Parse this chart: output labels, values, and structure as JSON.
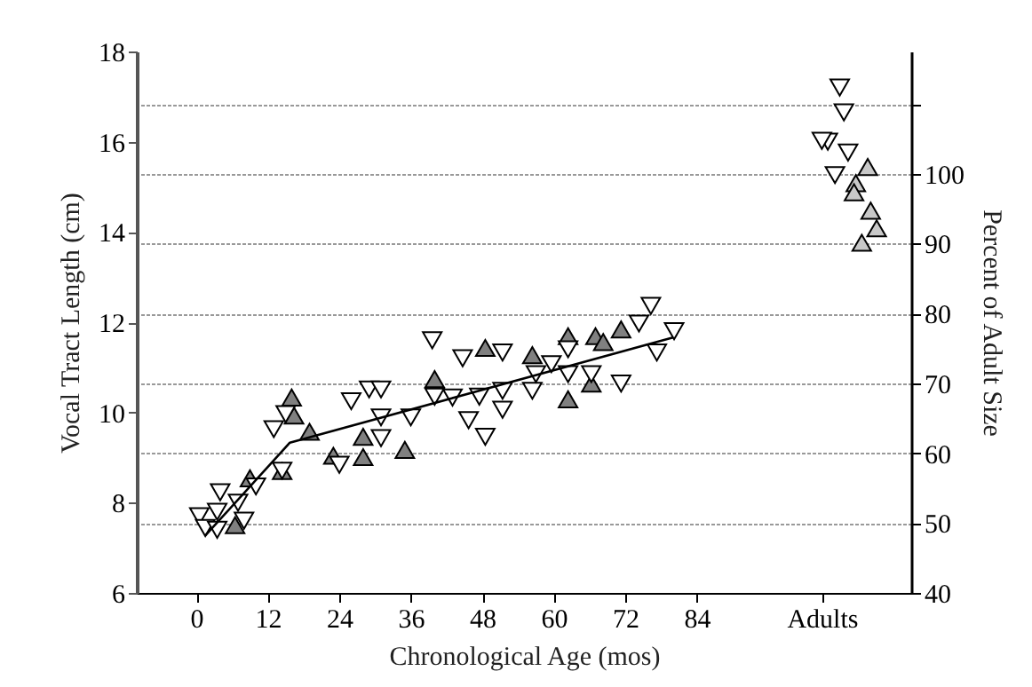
{
  "chart_data": {
    "type": "scatter",
    "xlabel": "Chronological Age (mos)",
    "ylabel": "Vocal Tract Length (cm)",
    "y2label": "Percent of Adult Size",
    "xlim": [
      -10,
      120
    ],
    "xticks": [
      0,
      12,
      24,
      36,
      48,
      60,
      72,
      84,
      {
        "value": 105,
        "label": "Adults"
      }
    ],
    "ylim": [
      6,
      18
    ],
    "yticks": [
      6,
      8,
      10,
      12,
      14,
      16,
      18
    ],
    "y2lim": [
      40,
      117.5
    ],
    "y2ticks": [
      40,
      50,
      60,
      70,
      80,
      90,
      100,
      {
        "value": 110,
        "label": null
      }
    ],
    "grid": "y",
    "series": [
      {
        "color": "#808080",
        "marker": "triangle",
        "x": [
          6.5,
          9,
          14.4,
          16,
          16.4,
          19,
          23,
          28,
          28,
          35,
          40,
          48.5,
          56.4,
          62.4,
          62.4,
          66.3,
          67,
          68.3,
          71.3
        ],
        "values": [
          7.5,
          8.54,
          8.7,
          10.33,
          9.93,
          9.57,
          9.04,
          9.46,
          9.01,
          9.17,
          10.74,
          11.43,
          11.27,
          11.69,
          10.29,
          10.64,
          11.69,
          11.56,
          11.84
        ]
      },
      {
        "color": "#ffffff",
        "marker": "triangle-down",
        "x": [
          0.5,
          1.5,
          3.5,
          4,
          3.5,
          7,
          8,
          10,
          13,
          15,
          14.4,
          24,
          26,
          29,
          31,
          31,
          31,
          36,
          39.6,
          40,
          43,
          44.7,
          45.7,
          47.5,
          48.5,
          51.4,
          51.4,
          51.4,
          56.4,
          57,
          59.6,
          62.4,
          62.4,
          66.3,
          71.3,
          74.3,
          76.3,
          77.3,
          80.2
        ],
        "values": [
          7.7,
          7.44,
          7.4,
          8.23,
          7.8,
          8.0,
          7.6,
          8.36,
          9.63,
          9.96,
          8.71,
          8.84,
          10.25,
          10.51,
          10.51,
          9.89,
          9.43,
          9.89,
          11.6,
          10.35,
          10.33,
          11.2,
          9.83,
          10.35,
          9.46,
          11.33,
          10.48,
          10.06,
          10.48,
          10.85,
          11.07,
          11.4,
          10.85,
          10.85,
          10.64,
          11.97,
          12.36,
          11.33,
          11.8
        ]
      },
      {
        "color": "#ffffff",
        "marker": "triangle-down",
        "x": [
          108,
          108.7,
          106,
          105,
          109.4,
          107.2
        ],
        "values": [
          17.2,
          16.65,
          16.0,
          16.02,
          15.76,
          15.26
        ]
      },
      {
        "color": "#c8c8c8",
        "marker": "triangle",
        "x": [
          112.7,
          110.7,
          110.4,
          113.2,
          114.2,
          111.7
        ],
        "values": [
          15.44,
          15.08,
          14.88,
          14.47,
          14.08,
          13.76
        ]
      },
      {
        "type": "line",
        "color": "#000000",
        "marker": "none",
        "x": [
          1.5,
          15.7,
          80
        ],
        "values": [
          7.27,
          9.33,
          11.66
        ]
      }
    ]
  }
}
